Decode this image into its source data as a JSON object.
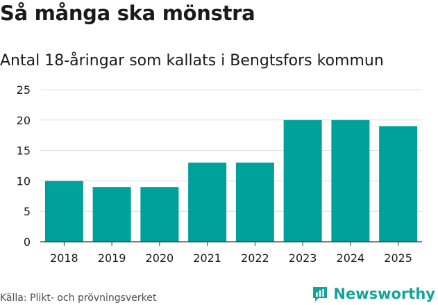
{
  "header": {
    "title": "Så många ska mönstra",
    "subtitle": "Antal 18-åringar som kallats i Bengtsfors kommun"
  },
  "footer": {
    "source": "Källa: Plikt- och prövningsverket",
    "brand": "Newsworthy"
  },
  "colors": {
    "bar": "#00a19a",
    "grid": "#dcdcdc",
    "axis": "#333333",
    "brand": "#12a39a"
  },
  "chart_data": {
    "type": "bar",
    "title": "Så många ska mönstra",
    "subtitle": "Antal 18-åringar som kallats i Bengtsfors kommun",
    "categories": [
      "2018",
      "2019",
      "2020",
      "2021",
      "2022",
      "2023",
      "2024",
      "2025"
    ],
    "values": [
      10,
      9,
      9,
      13,
      13,
      20,
      20,
      19
    ],
    "xlabel": "",
    "ylabel": "",
    "ylim": [
      0,
      25
    ],
    "yticks": [
      0,
      5,
      10,
      15,
      20,
      25
    ],
    "grid": true,
    "legend": "none"
  }
}
